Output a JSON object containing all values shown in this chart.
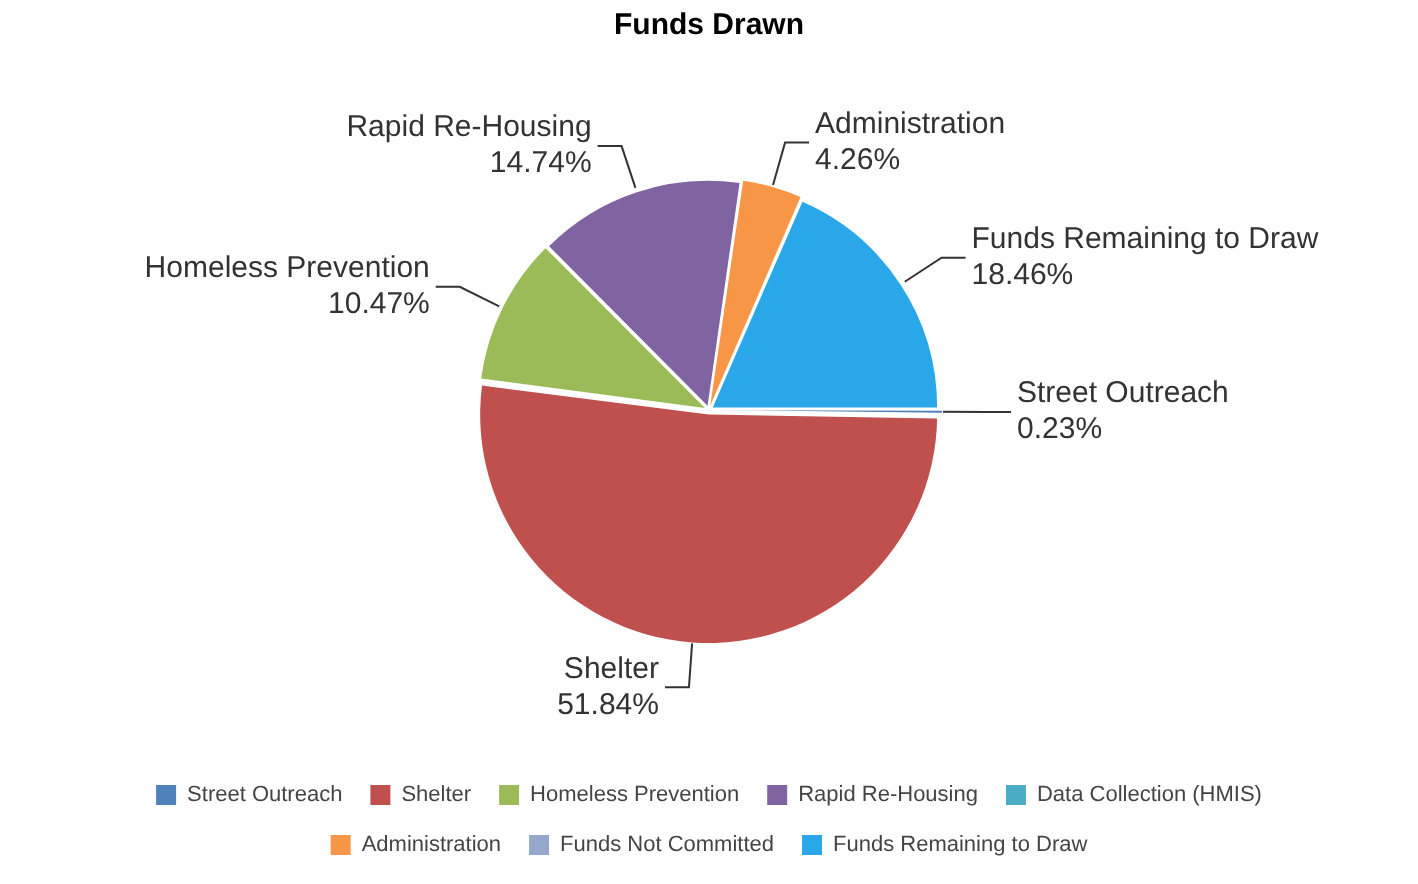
{
  "chart_data": {
    "type": "pie",
    "title": "Funds Drawn",
    "categories": [
      "Street Outreach",
      "Shelter",
      "Homeless Prevention",
      "Rapid Re-Housing",
      "Data Collection (HMIS)",
      "Administration",
      "Funds Not Committed",
      "Funds Remaining to Draw"
    ],
    "values": [
      0.23,
      51.84,
      10.47,
      14.74,
      0,
      4.26,
      0,
      18.46
    ],
    "colors": [
      "#4f81bd",
      "#c0504d",
      "#9bbb59",
      "#8064a2",
      "#4bacc6",
      "#f79646",
      "#95a8cc",
      "#2aa7e8"
    ],
    "value_labels": [
      "0.23%",
      "51.84%",
      "10.47%",
      "14.74%",
      null,
      "4.26%",
      null,
      "18.46%"
    ],
    "legend": "bottom"
  }
}
